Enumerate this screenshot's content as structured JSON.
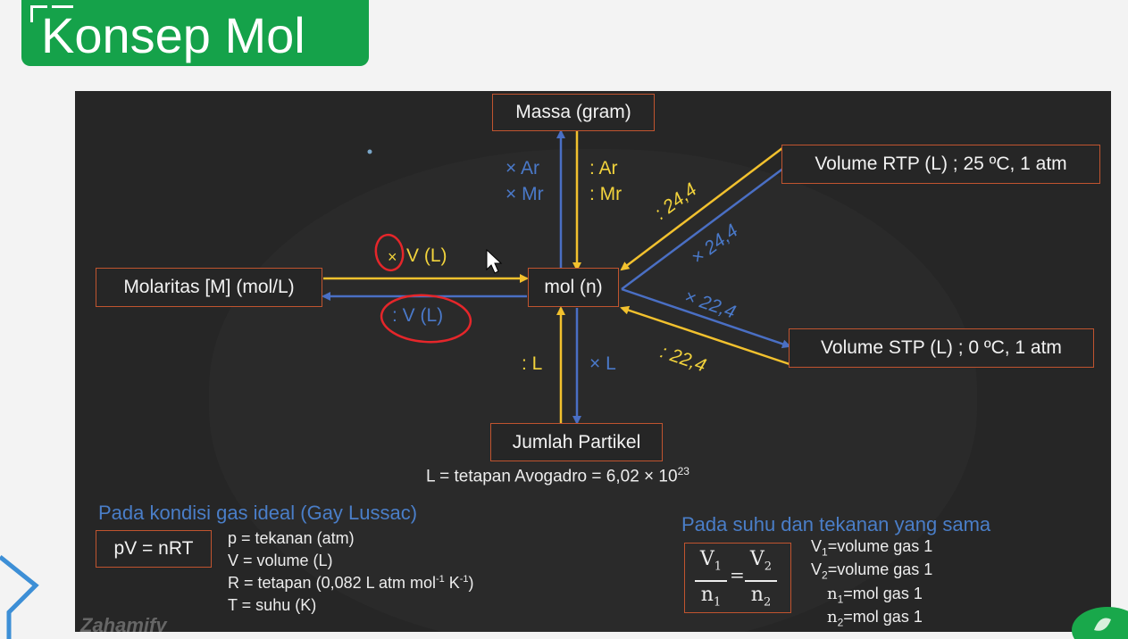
{
  "header": {
    "title": "Konsep Mol"
  },
  "diagram": {
    "nodes": {
      "massa": "Massa (gram)",
      "mol": "mol (n)",
      "molaritas": "Molaritas [M] (mol/L)",
      "volume_rtp": "Volume RTP (L) ; 25 ºC, 1 atm",
      "volume_stp": "Volume STP (L) ; 0 ºC, 1 atm",
      "jumlah_partikel": "Jumlah Partikel"
    },
    "edges": {
      "mol_to_massa_1": "× Ar",
      "mol_to_massa_2": "× Mr",
      "massa_to_mol_1": ": Ar",
      "massa_to_mol_2": ": Mr",
      "molaritas_to_mol": "V (L)",
      "molaritas_to_mol_sign": "×",
      "mol_to_molaritas": ": V (L)",
      "rtp_to_mol": ": 24,4",
      "mol_to_rtp": "× 24,4",
      "mol_to_stp": "× 22,4",
      "stp_to_mol": ": 22,4",
      "partikel_to_mol": ": L",
      "mol_to_partikel": "× L"
    },
    "avogadro": {
      "text": "L = tetapan Avogadro = 6,02 × 10",
      "exp": "23"
    },
    "colors": {
      "yellow": "#f2c12e",
      "blue": "#4a6fc4",
      "box_border": "#c0542f",
      "annotation": "#e5262a"
    }
  },
  "ideal_gas": {
    "title": "Pada kondisi gas ideal (Gay Lussac)",
    "formula": "pV = nRT",
    "p": "p = tekanan (atm)",
    "v": "V = volume (L)",
    "r_prefix": "R = tetapan (0,082 L atm mol",
    "r_exp1": "-1",
    "r_mid": " K",
    "r_exp2": "-1",
    "r_suffix": ")",
    "t": "T = suhu (K)"
  },
  "same_conditions": {
    "title": "Pada suhu dan tekanan yang sama",
    "frac1_num": "V",
    "frac1_num_sub": "1",
    "frac1_den": "n",
    "frac1_den_sub": "1",
    "equals": "=",
    "frac2_num": "V",
    "frac2_num_sub": "2",
    "frac2_den": "n",
    "frac2_den_sub": "2",
    "v1": "=volume gas 1",
    "v2": "=volume gas 1",
    "n1": "=mol gas 1",
    "n2": "=mol gas 1",
    "v1_sym": "V",
    "v1_sub": "1",
    "v2_sym": "V",
    "v2_sub": "2",
    "n1_sym": "n",
    "n1_sub": "1",
    "n2_sym": "n",
    "n2_sub": "2"
  },
  "footer": {
    "logo": "Zahamify"
  }
}
